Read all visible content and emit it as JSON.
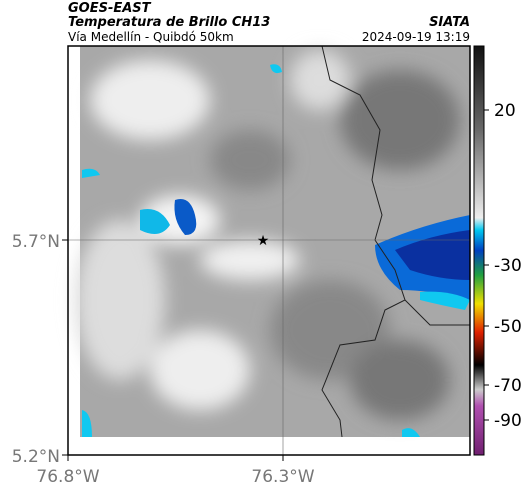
{
  "header": {
    "source": "GOES-EAST",
    "title": "Temperatura de Brillo CH13",
    "agency": "SIATA",
    "subtitle": "Vía Medellín - Quibdó 50km",
    "timestamp": "2024-09-19 13:19"
  },
  "map": {
    "lat_labels": [
      "5.7°N",
      "5.2°N"
    ],
    "lon_labels": [
      "76.8°W",
      "76.3°W"
    ]
  },
  "colorbar": {
    "ticks": [
      20,
      -30,
      -50,
      -70,
      -90
    ]
  }
}
